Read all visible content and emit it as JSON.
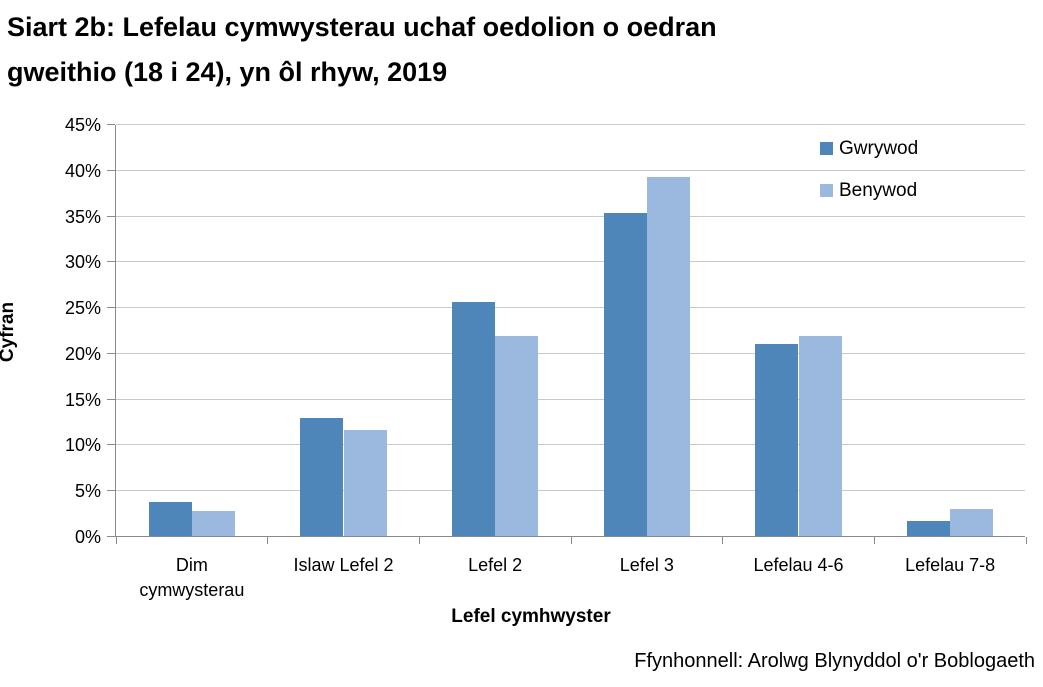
{
  "title_lines": [
    "Siart 2b: Lefelau cymwysterau uchaf oedolion o oedran",
    "gweithio (18 i 24), yn ôl rhyw, 2019"
  ],
  "source": "Ffynhonnell: Arolwg Blynyddol o'r Boblogaeth",
  "colors": {
    "series_gwrywod": "#4e86ba",
    "series_benywod": "#9bb9de",
    "gridline": "#c9c9c9",
    "axis": "#8a8a8a",
    "text": "#000000"
  },
  "chart_data": {
    "type": "bar",
    "title": "Siart 2b: Lefelau cymwysterau uchaf oedolion o oedran gweithio (18 i 24), yn ôl rhyw, 2019",
    "categories": [
      "Dim cymwysterau",
      "Islaw Lefel 2",
      "Lefel 2",
      "Lefel 3",
      "Lefelau 4-6",
      "Lefelau 7-8"
    ],
    "series": [
      {
        "name": "Gwrywod",
        "color": "#4e86ba",
        "values": [
          3.7,
          12.9,
          25.6,
          35.3,
          21.0,
          1.6
        ]
      },
      {
        "name": "Benywod",
        "color": "#9bb9de",
        "values": [
          2.7,
          11.6,
          21.9,
          39.2,
          21.9,
          2.9
        ]
      }
    ],
    "xlabel": "Lefel cymhwyster",
    "ylabel": "Cyfran",
    "ylim": [
      0,
      45
    ],
    "ytick_step": 5,
    "ytick_labels": [
      "0%",
      "5%",
      "10%",
      "15%",
      "20%",
      "25%",
      "30%",
      "35%",
      "40%",
      "45%"
    ],
    "grid": true,
    "legend_position": "top-right",
    "legend_labels": [
      "Gwrywod",
      "Benywod"
    ]
  }
}
